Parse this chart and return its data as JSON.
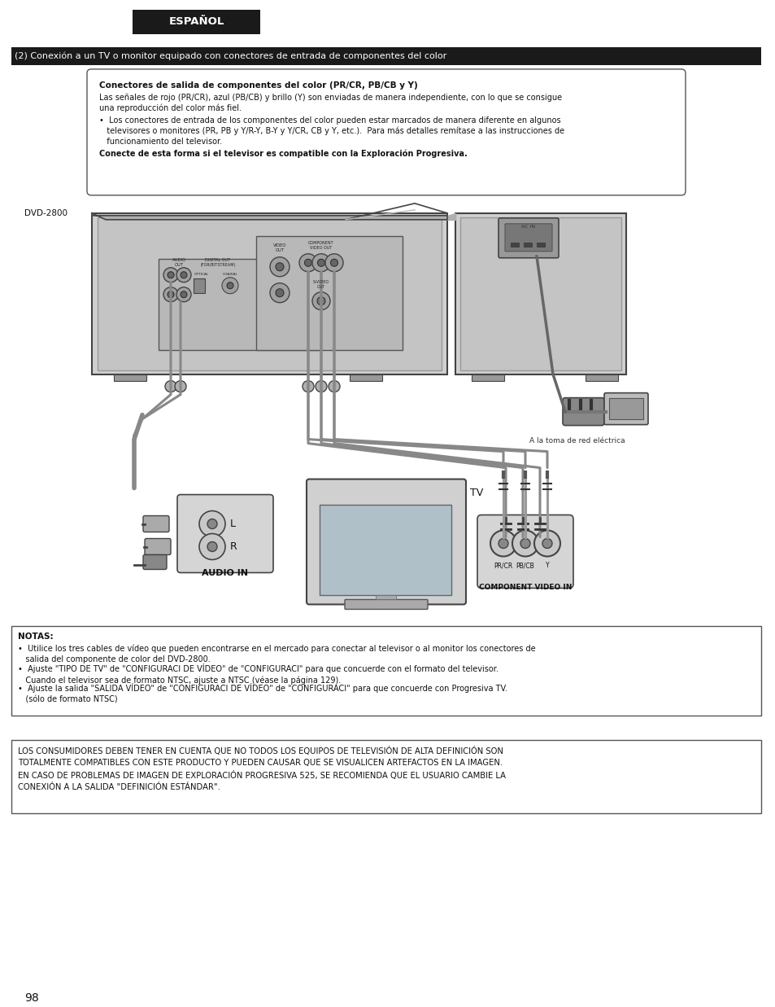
{
  "page_bg": "#ffffff",
  "header_tab_bg": "#1a1a1a",
  "header_tab_text": "ESPAÑOL",
  "header_tab_text_color": "#ffffff",
  "section_bar_bg": "#1a1a1a",
  "section_bar_text": "(2) Conexión a un TV o monitor equipado con conectores de entrada de componentes del color",
  "section_bar_text_color": "#ffffff",
  "info_box_title": "Conectores de salida de componentes del color (PR/CR, PB/CB y Y)",
  "body_line1": "Las señales de rojo (PR/CR), azul (PB/CB) y brillo (Y) son enviadas de manera independiente, con lo que se consigue",
  "body_line2": "una reproducción del color más fiel.",
  "bullet1a": "•  Los conectores de entrada de los componentes del color pueden estar marcados de manera diferente en algunos",
  "bullet1b": "   televisores o monitores (PR, PB y Y/R-Y, B-Y y Y/CR, CB y Y, etc.).  Para más detalles remítase a las instrucciones de",
  "bullet1c": "   funcionamiento del televisor.",
  "info_box_bold_last": "Conecte de esta forma si el televisor es compatible con la Exploración Progresiva.",
  "dvd_label": "DVD-2800",
  "tv_label": "TV",
  "audio_in_label": "AUDIO IN",
  "l_label": "L",
  "r_label": "R",
  "component_label": "COMPONENT VIDEO IN",
  "pr_cr_label": "PR/CR",
  "pb_cb_label": "PB/CB",
  "y_label": "Y",
  "power_label": "A la toma de red eléctrica",
  "ac_in_label": "AC IN",
  "audio_out_label": "AUDIO\nOUT",
  "digital_out_label": "DIGITAL OUT\n(FOR/BITSTREAM)",
  "optical_label": "OPTICAL",
  "coaxial_label": "COAXIAL",
  "video_out_label": "VIDEO\nOUT",
  "component_out_label": "COMPONENT\nVIDEO OUT",
  "s_video_label": "S-VIDEO\nOUT",
  "notes_title": "NOTAS:",
  "note1": "•  Utilice los tres cables de vídeo que pueden encontrarse en el mercado para conectar al televisor o al monitor los conectores de\n   salida del componente de color del DVD-2800.",
  "note2": "•  Ajuste \"TIPO DE TV\" de \"CONFIGURACI DE VÍDEO\" de \"CONFIGURACI\" para que concuerde con el formato del televisor.\n   Cuando el televisor sea de formato NTSC, ajuste a NTSC (véase la página 129).",
  "note3": "•  Ajuste la salida \"SALIDA VÍDEO\" de \"CONFIGURACI DE VÍDEO\" de \"CONFIGURACI\" para que concuerde con Progresiva TV.\n   (sólo de formato NTSC)",
  "warning_text": "LOS CONSUMIDORES DEBEN TENER EN CUENTA QUE NO TODOS LOS EQUIPOS DE TELEVISIÓN DE ALTA DEFINICIÓN SON\nTOTALMENTE COMPATIBLES CON ESTE PRODUCTO Y PUEDEN CAUSAR QUE SE VISUALICEN ARTEFACTOS EN LA IMAGEN.\nEN CASO DE PROBLEMAS DE IMAGEN DE EXPLORACIÓN PROGRESIVA 525, SE RECOMIENDA QUE EL USUARIO CAMBIE LA\nCONEXIÓN A LA SALIDA \"DEFINICIÓN ESTÁNDAR\".",
  "page_number": "98",
  "gray_device": "#d0d0d0",
  "dark_gray": "#444444",
  "mid_gray": "#888888",
  "light_gray": "#cccccc",
  "cable_gray": "#777777",
  "white": "#ffffff"
}
